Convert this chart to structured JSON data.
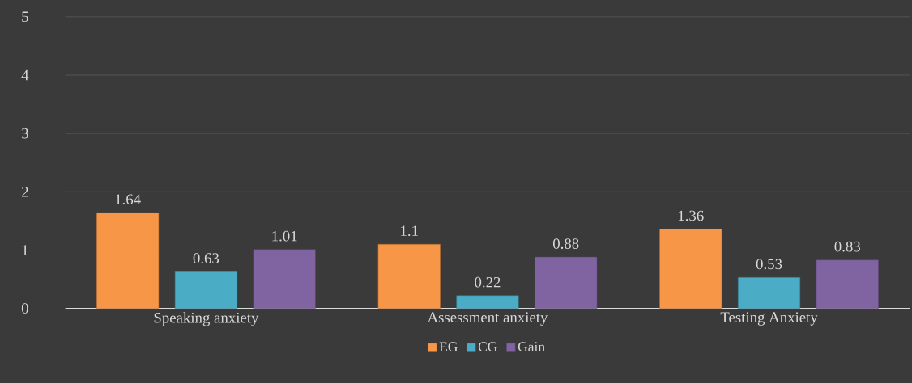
{
  "chart_data": {
    "type": "bar",
    "categories": [
      "Speaking anxiety",
      "Assessment anxiety",
      "Testing Anxiety"
    ],
    "series": [
      {
        "name": "EG",
        "color": "#f79646",
        "values": [
          1.64,
          1.1,
          1.36
        ]
      },
      {
        "name": "CG",
        "color": "#4bacc6",
        "values": [
          0.63,
          0.22,
          0.53
        ]
      },
      {
        "name": "Gain",
        "color": "#8064a2",
        "values": [
          1.01,
          0.88,
          0.83
        ]
      }
    ],
    "ylim": [
      0,
      5
    ],
    "yticks": [
      0,
      1,
      2,
      3,
      4,
      5
    ],
    "grid": "y",
    "legend": "bottom",
    "data_labels": true
  }
}
